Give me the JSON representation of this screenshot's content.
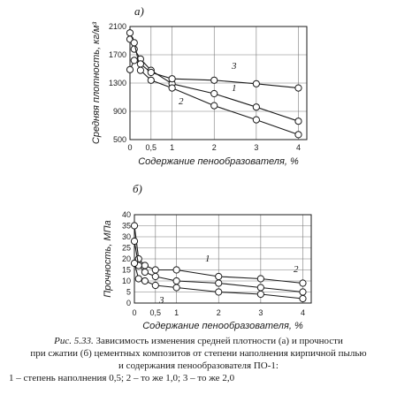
{
  "caption": {
    "fig_label": "Рис. 5.33.",
    "line1_text": "Зависимость изменения средней плотности (а) и прочности",
    "line2_text": "при сжатии (б) цементных композитов от степени наполнения кирпичной пылью",
    "line3_text": "и содержания пенообразователя ПО-1:",
    "legend_line": "1 – степень наполнения 0,5; 2 – то же 1,0; 3 – то же 2,0"
  },
  "chart_data": [
    {
      "type": "line",
      "panel_label": "а)",
      "xlabel": "Содержание пенообразователя, %",
      "ylabel": "Средняя плотность, кг/м³",
      "xlim": [
        0,
        4.2
      ],
      "ylim": [
        500,
        2100
      ],
      "xticks": [
        0,
        0.5,
        1,
        2,
        3,
        4
      ],
      "xtick_labels": [
        "0",
        "0,5",
        "1",
        "2",
        "3",
        "4"
      ],
      "yticks": [
        500,
        900,
        1300,
        1700,
        2100
      ],
      "ytick_labels": [
        "500",
        "900",
        "1300",
        "1700",
        "2100"
      ],
      "grid": true,
      "series": [
        {
          "name": "1",
          "x": [
            0,
            0.1,
            0.25,
            0.5,
            1,
            2,
            3,
            4
          ],
          "y": [
            1920,
            1780,
            1640,
            1480,
            1290,
            1150,
            960,
            760
          ]
        },
        {
          "name": "2",
          "x": [
            0,
            0.1,
            0.25,
            0.5,
            1,
            2,
            3,
            4
          ],
          "y": [
            2010,
            1870,
            1480,
            1340,
            1230,
            980,
            780,
            570
          ]
        },
        {
          "name": "3",
          "x": [
            0,
            0.1,
            0.25,
            0.5,
            1,
            2,
            3,
            4
          ],
          "y": [
            1490,
            1620,
            1570,
            1450,
            1360,
            1340,
            1290,
            1230
          ]
        }
      ]
    },
    {
      "type": "line",
      "panel_label": "б)",
      "xlabel": "Содержание пенообразователя, %",
      "ylabel": "Прочность, МПа",
      "xlim": [
        0,
        4.2
      ],
      "ylim": [
        0,
        40
      ],
      "xticks": [
        0,
        0.5,
        1,
        2,
        3,
        4
      ],
      "xtick_labels": [
        "0",
        "0,5",
        "1",
        "2",
        "3",
        "4"
      ],
      "yticks": [
        0,
        5,
        10,
        15,
        20,
        25,
        30,
        35,
        40
      ],
      "ytick_labels": [
        "0",
        "5",
        "10",
        "15",
        "20",
        "25",
        "30",
        "35",
        "40"
      ],
      "grid": true,
      "series": [
        {
          "name": "1",
          "x": [
            0,
            0.1,
            0.25,
            0.5,
            1,
            2,
            3,
            4
          ],
          "y": [
            35,
            20,
            17,
            15,
            15,
            12,
            11,
            9
          ]
        },
        {
          "name": "2",
          "x": [
            0,
            0.1,
            0.25,
            0.5,
            1,
            2,
            3,
            4
          ],
          "y": [
            28,
            17,
            14,
            12,
            10,
            9,
            7,
            5
          ]
        },
        {
          "name": "3",
          "x": [
            0,
            0.1,
            0.25,
            0.5,
            1,
            2,
            3,
            4
          ],
          "y": [
            18,
            11,
            10,
            8,
            7,
            5,
            4,
            2
          ]
        }
      ]
    }
  ]
}
